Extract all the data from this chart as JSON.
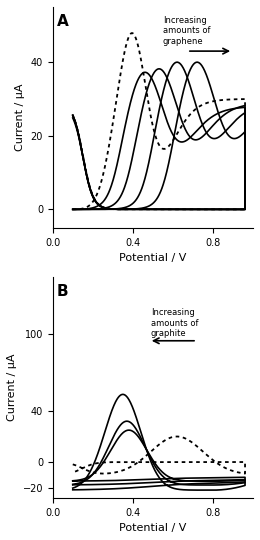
{
  "panel_A": {
    "label": "A",
    "ylabel": "Current / μA",
    "xlabel": "Potential / V",
    "xlim": [
      0.0,
      1.0
    ],
    "ylim": [
      -5,
      55
    ],
    "yticks": [
      0,
      20,
      40
    ],
    "xticks": [
      0.0,
      0.4,
      0.8
    ]
  },
  "panel_B": {
    "label": "B",
    "ylabel": "Current / μA",
    "xlabel": "Potential / V",
    "xlim": [
      0.0,
      1.0
    ],
    "ylim": [
      -28,
      145
    ],
    "yticks": [
      -20,
      0,
      40,
      100
    ],
    "xticks": [
      0.0,
      0.4,
      0.8
    ]
  }
}
